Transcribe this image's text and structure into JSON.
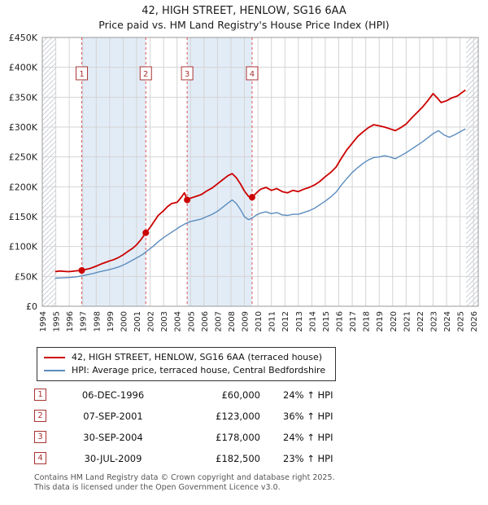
{
  "title": {
    "line1": "42, HIGH STREET, HENLOW, SG16 6AA",
    "line2": "Price paid vs. HM Land Registry's House Price Index (HPI)"
  },
  "chart_data": {
    "type": "line",
    "title": "42, HIGH STREET, HENLOW, SG16 6AA",
    "subtitle": "Price paid vs. HM Land Registry's House Price Index (HPI)",
    "legend_position": "bottom",
    "grid": true,
    "shade_color": "#e2ecf7",
    "x_axis": {
      "min": 1994,
      "max": 2026.35,
      "ticks": [
        1994,
        1995,
        1996,
        1997,
        1998,
        1999,
        2000,
        2001,
        2002,
        2003,
        2004,
        2005,
        2006,
        2007,
        2008,
        2009,
        2010,
        2011,
        2012,
        2013,
        2014,
        2015,
        2016,
        2017,
        2018,
        2019,
        2020,
        2021,
        2022,
        2023,
        2024,
        2025,
        2026
      ]
    },
    "y_axis": {
      "min": 0,
      "max": 450000,
      "tick_step": 50000,
      "tick_labels": [
        "£0",
        "£50K",
        "£100K",
        "£150K",
        "£200K",
        "£250K",
        "£300K",
        "£350K",
        "£400K",
        "£450K"
      ]
    },
    "hatch_regions": [
      [
        1994,
        1995.0
      ],
      [
        2025.45,
        2026.35
      ]
    ],
    "shaded_regions": [
      [
        1996.93,
        2001.68
      ],
      [
        2004.75,
        2009.57
      ]
    ],
    "sales": [
      {
        "n": 1,
        "x": 1996.93,
        "y": 60000,
        "date": "06-DEC-1996",
        "price": "£60,000",
        "hpi_delta": "24% ↑ HPI"
      },
      {
        "n": 2,
        "x": 2001.68,
        "y": 123000,
        "date": "07-SEP-2001",
        "price": "£123,000",
        "hpi_delta": "36% ↑ HPI"
      },
      {
        "n": 3,
        "x": 2004.75,
        "y": 178000,
        "date": "30-SEP-2004",
        "price": "£178,000",
        "hpi_delta": "24% ↑ HPI"
      },
      {
        "n": 4,
        "x": 2009.57,
        "y": 182500,
        "date": "30-JUL-2009",
        "price": "£182,500",
        "hpi_delta": "23% ↑ HPI"
      }
    ],
    "series": [
      {
        "name": "42, HIGH STREET, HENLOW, SG16 6AA (terraced house)",
        "color": "#cc0000",
        "points": [
          [
            1994.95,
            58000
          ],
          [
            1995.3,
            59000
          ],
          [
            1995.6,
            58500
          ],
          [
            1995.9,
            58000
          ],
          [
            1996.2,
            58500
          ],
          [
            1996.6,
            59500
          ],
          [
            1996.93,
            60000
          ],
          [
            1997.2,
            61500
          ],
          [
            1997.5,
            63000
          ],
          [
            1997.8,
            65500
          ],
          [
            1998.1,
            68000
          ],
          [
            1998.4,
            71000
          ],
          [
            1998.7,
            73500
          ],
          [
            1999,
            76000
          ],
          [
            1999.3,
            78000
          ],
          [
            1999.6,
            81000
          ],
          [
            2000,
            86000
          ],
          [
            2000.3,
            91000
          ],
          [
            2000.7,
            97000
          ],
          [
            2001,
            103000
          ],
          [
            2001.3,
            111000
          ],
          [
            2001.68,
            123000
          ],
          [
            2002,
            132000
          ],
          [
            2002.3,
            142000
          ],
          [
            2002.6,
            152000
          ],
          [
            2003,
            160000
          ],
          [
            2003.3,
            167000
          ],
          [
            2003.6,
            172000
          ],
          [
            2004,
            174000
          ],
          [
            2004.3,
            182000
          ],
          [
            2004.55,
            190000
          ],
          [
            2004.75,
            178000
          ],
          [
            2005,
            181000
          ],
          [
            2005.4,
            184000
          ],
          [
            2005.8,
            187000
          ],
          [
            2006.2,
            193000
          ],
          [
            2006.6,
            198000
          ],
          [
            2007,
            205000
          ],
          [
            2007.4,
            212000
          ],
          [
            2007.8,
            219000
          ],
          [
            2008.1,
            222000
          ],
          [
            2008.4,
            215000
          ],
          [
            2008.7,
            205000
          ],
          [
            2009,
            193000
          ],
          [
            2009.3,
            184000
          ],
          [
            2009.57,
            182500
          ],
          [
            2009.9,
            190000
          ],
          [
            2010.2,
            196000
          ],
          [
            2010.6,
            199000
          ],
          [
            2011,
            194000
          ],
          [
            2011.4,
            197000
          ],
          [
            2011.8,
            192000
          ],
          [
            2012.2,
            190000
          ],
          [
            2012.6,
            194000
          ],
          [
            2013,
            192000
          ],
          [
            2013.4,
            196000
          ],
          [
            2013.8,
            199000
          ],
          [
            2014.2,
            203000
          ],
          [
            2014.6,
            209000
          ],
          [
            2015,
            217000
          ],
          [
            2015.4,
            224000
          ],
          [
            2015.8,
            233000
          ],
          [
            2016.2,
            248000
          ],
          [
            2016.6,
            262000
          ],
          [
            2017,
            273000
          ],
          [
            2017.4,
            284000
          ],
          [
            2017.8,
            292000
          ],
          [
            2018.2,
            299000
          ],
          [
            2018.6,
            304000
          ],
          [
            2019,
            302000
          ],
          [
            2019.4,
            300000
          ],
          [
            2019.8,
            297000
          ],
          [
            2020.2,
            294000
          ],
          [
            2020.6,
            299000
          ],
          [
            2021,
            305000
          ],
          [
            2021.4,
            315000
          ],
          [
            2021.8,
            324000
          ],
          [
            2022.2,
            333000
          ],
          [
            2022.6,
            344000
          ],
          [
            2023,
            356000
          ],
          [
            2023.3,
            349000
          ],
          [
            2023.6,
            341000
          ],
          [
            2024,
            344000
          ],
          [
            2024.4,
            349000
          ],
          [
            2024.8,
            352000
          ],
          [
            2025.1,
            357000
          ],
          [
            2025.4,
            362000
          ]
        ]
      },
      {
        "name": "HPI: Average price, terraced house, Central Bedfordshire",
        "color": "#5b8cbe",
        "points": [
          [
            1994.95,
            47000
          ],
          [
            1995.4,
            47500
          ],
          [
            1995.8,
            48000
          ],
          [
            1996.2,
            48500
          ],
          [
            1996.6,
            49500
          ],
          [
            1997,
            51000
          ],
          [
            1997.4,
            53000
          ],
          [
            1997.8,
            55000
          ],
          [
            1998.2,
            57500
          ],
          [
            1998.6,
            59500
          ],
          [
            1999,
            61500
          ],
          [
            1999.4,
            64000
          ],
          [
            1999.8,
            67000
          ],
          [
            2000.2,
            71000
          ],
          [
            2000.6,
            76000
          ],
          [
            2001,
            81000
          ],
          [
            2001.4,
            86000
          ],
          [
            2001.8,
            93000
          ],
          [
            2002.2,
            100000
          ],
          [
            2002.6,
            108000
          ],
          [
            2003,
            115000
          ],
          [
            2003.4,
            121000
          ],
          [
            2003.8,
            127000
          ],
          [
            2004.2,
            133000
          ],
          [
            2004.6,
            138000
          ],
          [
            2005,
            142000
          ],
          [
            2005.4,
            144000
          ],
          [
            2005.8,
            146000
          ],
          [
            2006.2,
            150000
          ],
          [
            2006.6,
            154000
          ],
          [
            2007,
            159000
          ],
          [
            2007.4,
            166000
          ],
          [
            2007.8,
            173000
          ],
          [
            2008.1,
            178000
          ],
          [
            2008.4,
            172000
          ],
          [
            2008.7,
            162000
          ],
          [
            2009,
            150000
          ],
          [
            2009.3,
            145000
          ],
          [
            2009.6,
            148000
          ],
          [
            2009.9,
            153000
          ],
          [
            2010.2,
            156000
          ],
          [
            2010.6,
            158000
          ],
          [
            2011,
            155000
          ],
          [
            2011.4,
            157000
          ],
          [
            2011.8,
            153000
          ],
          [
            2012.2,
            152000
          ],
          [
            2012.6,
            154000
          ],
          [
            2013,
            154000
          ],
          [
            2013.4,
            157000
          ],
          [
            2013.8,
            160000
          ],
          [
            2014.2,
            164000
          ],
          [
            2014.6,
            170000
          ],
          [
            2015,
            176000
          ],
          [
            2015.4,
            183000
          ],
          [
            2015.8,
            191000
          ],
          [
            2016.2,
            203000
          ],
          [
            2016.6,
            214000
          ],
          [
            2017,
            224000
          ],
          [
            2017.4,
            232000
          ],
          [
            2017.8,
            239000
          ],
          [
            2018.2,
            245000
          ],
          [
            2018.6,
            249000
          ],
          [
            2019,
            250000
          ],
          [
            2019.4,
            252000
          ],
          [
            2019.8,
            250000
          ],
          [
            2020.2,
            247000
          ],
          [
            2020.6,
            252000
          ],
          [
            2021,
            257000
          ],
          [
            2021.4,
            263000
          ],
          [
            2021.8,
            269000
          ],
          [
            2022.2,
            275000
          ],
          [
            2022.6,
            282000
          ],
          [
            2023,
            289000
          ],
          [
            2023.4,
            294000
          ],
          [
            2023.8,
            287000
          ],
          [
            2024.2,
            283000
          ],
          [
            2024.6,
            287000
          ],
          [
            2025,
            292000
          ],
          [
            2025.4,
            297000
          ]
        ]
      }
    ]
  },
  "legend": {
    "series1": "42, HIGH STREET, HENLOW, SG16 6AA (terraced house)",
    "series2": "HPI: Average price, terraced house, Central Bedfordshire"
  },
  "table": {
    "rows": [
      {
        "num": "1",
        "date": "06-DEC-1996",
        "price": "£60,000",
        "hpi": "24% ↑ HPI"
      },
      {
        "num": "2",
        "date": "07-SEP-2001",
        "price": "£123,000",
        "hpi": "36% ↑ HPI"
      },
      {
        "num": "3",
        "date": "30-SEP-2004",
        "price": "£178,000",
        "hpi": "24% ↑ HPI"
      },
      {
        "num": "4",
        "date": "30-JUL-2009",
        "price": "£182,500",
        "hpi": "23% ↑ HPI"
      }
    ]
  },
  "footer": {
    "line1": "Contains HM Land Registry data © Crown copyright and database right 2025.",
    "line2": "This data is licensed under the Open Government Licence v3.0."
  }
}
